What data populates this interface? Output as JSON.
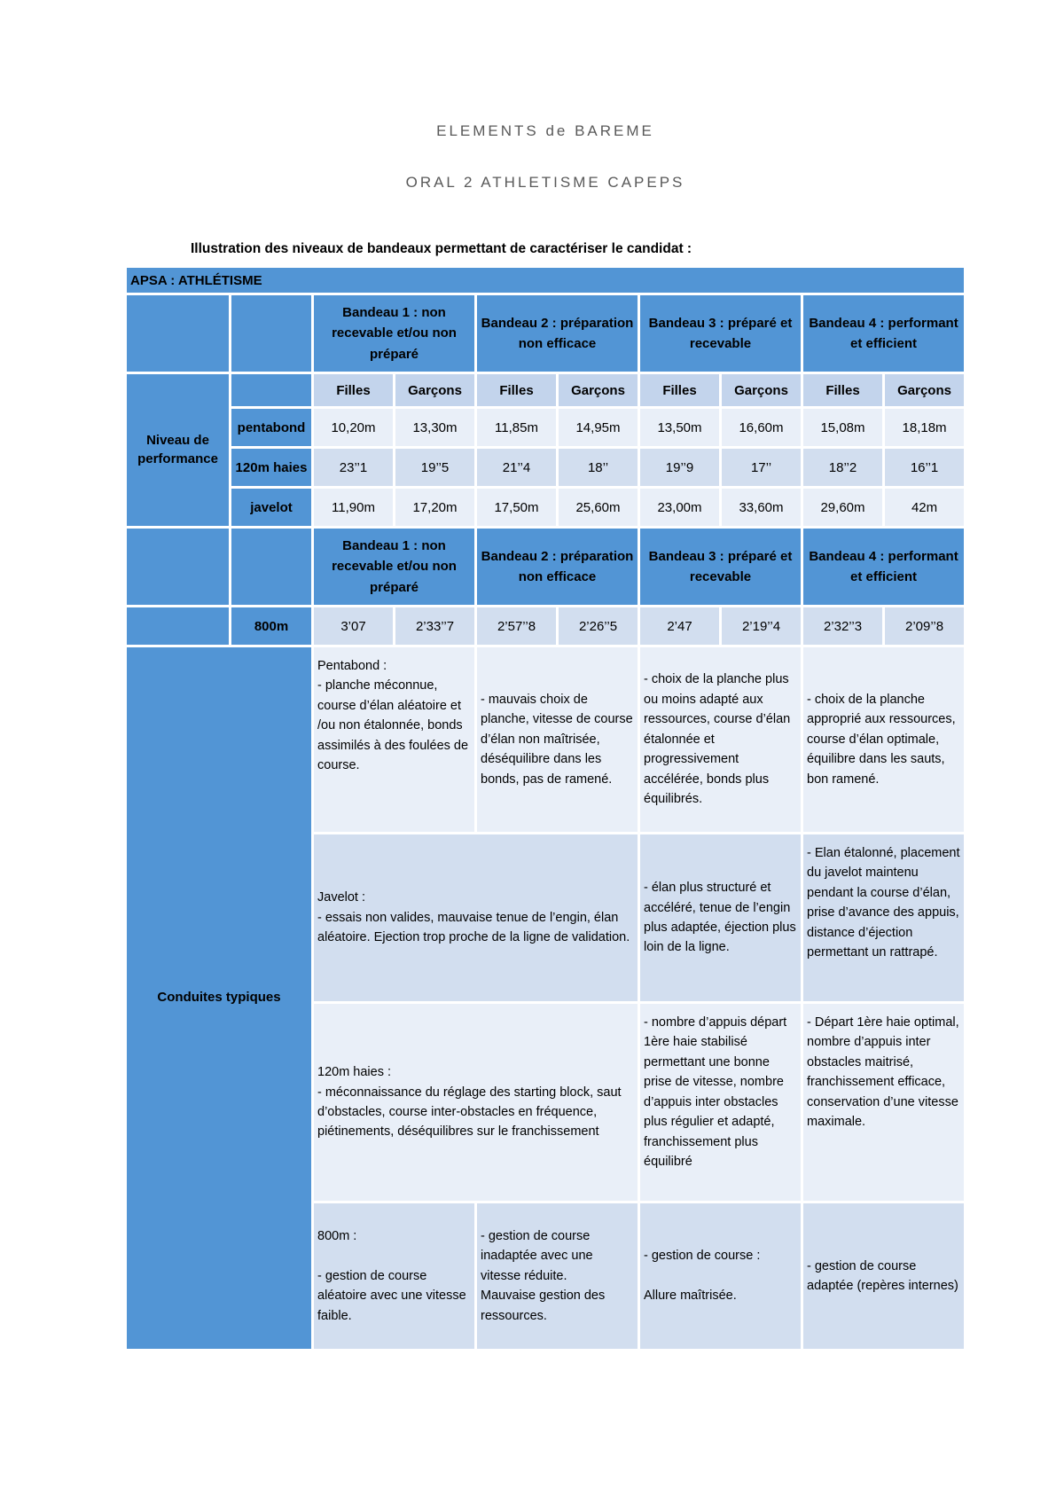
{
  "page": {
    "title_line1": "ELEMENTS de BAREME",
    "title_line2": "ORAL 2 ATHLETISME CAPEPS",
    "caption": "Illustration des niveaux de bandeaux permettant de caractériser le candidat :"
  },
  "table": {
    "apsa_header": "APSA : ATHLÉTISME",
    "bandeaux": [
      "Bandeau 1 : non recevable et/ou non préparé",
      "Bandeau 2 : préparation non efficace",
      "Bandeau 3 : préparé et recevable",
      "Bandeau 4 : performant et efficient"
    ],
    "gender_headers": [
      "Filles",
      "Garçons",
      "Filles",
      "Garçons",
      "Filles",
      "Garçons",
      "Filles",
      "Garçons"
    ],
    "performance_label": "Niveau de performance",
    "rows": {
      "pentabond": {
        "label": "pentabond",
        "values": [
          "10,20m",
          "13,30m",
          "11,85m",
          "14,95m",
          "13,50m",
          "16,60m",
          "15,08m",
          "18,18m"
        ]
      },
      "haies": {
        "label": "120m haies",
        "values": [
          "23’’1",
          "19’’5",
          "21’’4",
          "18’’",
          "19’’9",
          "17’’",
          "18’’2",
          "16’’1"
        ]
      },
      "javelot": {
        "label": "javelot",
        "values": [
          "11,90m",
          "17,20m",
          "17,50m",
          "25,60m",
          "23,00m",
          "33,60m",
          "29,60m",
          "42m"
        ]
      },
      "m800": {
        "label": "800m",
        "values": [
          "3’07",
          "2’33’’7",
          "2’57’’8",
          "2’26’’5",
          "2’47",
          "2’19’’4",
          "2’32’’3",
          "2’09’’8"
        ]
      }
    },
    "conduites": {
      "label": "Conduites typiques",
      "pentabond": {
        "b1": "Pentabond :\n- planche méconnue, course d’élan aléatoire et /ou non étalonnée, bonds assimilés à des foulées de course.",
        "b2": "- mauvais choix de planche, vitesse de course d’élan non maîtrisée, déséquilibre dans les bonds, pas de ramené.",
        "b3": "- choix de la planche plus ou moins adapté aux ressources, course d’élan étalonnée et progressivement accélérée, bonds plus équilibrés.",
        "b4": "- choix de la planche approprié aux ressources, course d’élan optimale, équilibre dans les sauts, bon ramené."
      },
      "javelot": {
        "b12": "Javelot :\n- essais non valides, mauvaise tenue de l’engin, élan aléatoire. Ejection trop proche de la ligne de validation.",
        "b3": "- élan plus structuré et accéléré, tenue de l’engin plus adaptée, éjection plus loin de la ligne.",
        "b4": "- Elan étalonné, placement du javelot maintenu pendant la course d’élan, prise d’avance des appuis, distance d’éjection permettant un rattrapé."
      },
      "haies": {
        "b12": "120m haies :\n- méconnaissance du réglage des starting block, saut d’obstacles, course inter-obstacles en fréquence, piétinements, déséquilibres sur le franchissement",
        "b3": "- nombre d’appuis départ 1ère haie stabilisé permettant une bonne prise de vitesse, nombre d’appuis inter obstacles plus régulier et adapté, franchissement plus équilibré",
        "b4": "- Départ 1ère haie optimal, nombre d’appuis inter obstacles maitrisé, franchissement efficace, conservation d’une vitesse maximale."
      },
      "m800": {
        "b1": "800m :\n\n- gestion de course aléatoire avec une vitesse faible.",
        "b2": "- gestion de course inadaptée avec une vitesse réduite.\nMauvaise gestion des ressources.",
        "b3": "- gestion de course :\n\nAllure maîtrisée.",
        "b4": "- gestion de course adaptée (repères internes)"
      }
    }
  }
}
